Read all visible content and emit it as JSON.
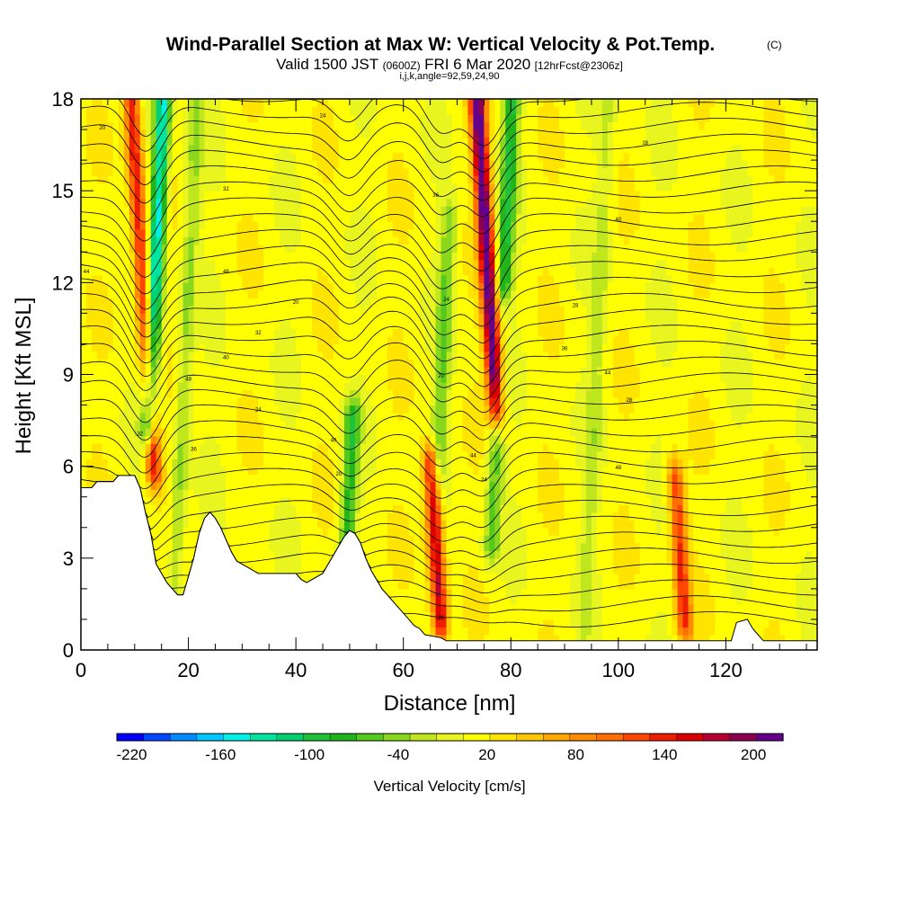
{
  "header": {
    "title_main": "Wind-Parallel Section at Max W: Vertical Velocity & Pot.Temp.",
    "title_units": "(C)",
    "valid_1": "Valid 1500 JST",
    "valid_2": "(0600Z)",
    "valid_3": "FRI 6 Mar 2020",
    "valid_4": "[12hrFcst@2306z]",
    "ijk": "i,j,k,angle=92,59,24,90"
  },
  "chart_data": {
    "type": "heatmap",
    "title": "Wind-Parallel Section at Max W: Vertical Velocity & Pot.Temp.",
    "xlabel": "Distance [nm]",
    "ylabel": "Height [Kft MSL]",
    "xlim": [
      0,
      137
    ],
    "ylim": [
      0,
      18
    ],
    "x_ticks": [
      "0",
      "20",
      "40",
      "60",
      "80",
      "100",
      "120"
    ],
    "x_tick_values": [
      0,
      20,
      40,
      60,
      80,
      100,
      120
    ],
    "y_ticks": [
      "0",
      "3",
      "6",
      "9",
      "12",
      "15",
      "18"
    ],
    "y_tick_values": [
      0,
      3,
      6,
      9,
      12,
      15,
      18
    ],
    "colorbar": {
      "label": "Vertical Velocity [cm/s]",
      "tick_labels": [
        "-220",
        "-160",
        "-100",
        "-40",
        "20",
        "80",
        "140",
        "200"
      ],
      "tick_values": [
        -220,
        -160,
        -100,
        -40,
        20,
        80,
        140,
        200
      ],
      "range": [
        -230,
        220
      ],
      "colors": [
        "#0000ff",
        "#0047ff",
        "#008cff",
        "#00c8ff",
        "#00f0e6",
        "#00e6a0",
        "#00d070",
        "#1fc33a",
        "#22b41c",
        "#55c81e",
        "#8ad71e",
        "#c0e61e",
        "#e8f51e",
        "#ffff00",
        "#ffe400",
        "#ffc800",
        "#ffa800",
        "#ff8c00",
        "#ff6e00",
        "#ff4600",
        "#f01e00",
        "#dc0000",
        "#b90032",
        "#8b0050",
        "#64008c"
      ]
    },
    "velocity_features": [
      {
        "x": 11.5,
        "z_bottom": 6.0,
        "z_top": 18,
        "w": 140
      },
      {
        "x": 14.0,
        "z_bottom": 7.5,
        "z_top": 18,
        "w": -160
      },
      {
        "x": 19.5,
        "z_bottom": 2.0,
        "z_top": 18,
        "w": -50
      },
      {
        "x": 50.0,
        "z_bottom": 3.5,
        "z_top": 7.5,
        "w": -90
      },
      {
        "x": 66.0,
        "z_bottom": 1.0,
        "z_top": 6.0,
        "w": 160
      },
      {
        "x": 67.5,
        "z_bottom": 6.0,
        "z_top": 14,
        "w": -60
      },
      {
        "x": 75.5,
        "z_bottom": 8.0,
        "z_top": 18,
        "w": 210
      },
      {
        "x": 77.0,
        "z_bottom": 3.5,
        "z_top": 8.0,
        "w": -70
      },
      {
        "x": 79.5,
        "z_bottom": 12,
        "z_top": 18,
        "w": -100
      },
      {
        "x": 96.0,
        "z_bottom": 1.0,
        "z_top": 18,
        "w": -30
      },
      {
        "x": 111.5,
        "z_bottom": 1.0,
        "z_top": 5.5,
        "w": 120
      }
    ],
    "theta_contour_labels": [
      "20",
      "24",
      "28",
      "32",
      "36",
      "40",
      "44",
      "48"
    ],
    "terrain_kft": [
      [
        0,
        5.3
      ],
      [
        2,
        5.3
      ],
      [
        3,
        5.5
      ],
      [
        6,
        5.5
      ],
      [
        7,
        5.7
      ],
      [
        10,
        5.7
      ],
      [
        11,
        5.3
      ],
      [
        12,
        4.5
      ],
      [
        13,
        3.8
      ],
      [
        14,
        2.8
      ],
      [
        15,
        2.5
      ],
      [
        16,
        2.2
      ],
      [
        17,
        2.0
      ],
      [
        18,
        1.8
      ],
      [
        19,
        1.8
      ],
      [
        20,
        2.4
      ],
      [
        21,
        3.0
      ],
      [
        22,
        3.8
      ],
      [
        23,
        4.3
      ],
      [
        24,
        4.5
      ],
      [
        25,
        4.3
      ],
      [
        26,
        4.0
      ],
      [
        27,
        3.6
      ],
      [
        28,
        3.2
      ],
      [
        29,
        2.9
      ],
      [
        30,
        2.8
      ],
      [
        31,
        2.7
      ],
      [
        32,
        2.6
      ],
      [
        33,
        2.5
      ],
      [
        36,
        2.5
      ],
      [
        40,
        2.5
      ],
      [
        41,
        2.3
      ],
      [
        42,
        2.2
      ],
      [
        43,
        2.3
      ],
      [
        45,
        2.5
      ],
      [
        46,
        2.8
      ],
      [
        47,
        3.1
      ],
      [
        48,
        3.4
      ],
      [
        49,
        3.7
      ],
      [
        50,
        3.9
      ],
      [
        51,
        3.8
      ],
      [
        52,
        3.5
      ],
      [
        53,
        3.0
      ],
      [
        54,
        2.6
      ],
      [
        55,
        2.3
      ],
      [
        56,
        2.0
      ],
      [
        57,
        1.8
      ],
      [
        58,
        1.6
      ],
      [
        59,
        1.4
      ],
      [
        60,
        1.2
      ],
      [
        61,
        1.0
      ],
      [
        62,
        0.8
      ],
      [
        63,
        0.7
      ],
      [
        64,
        0.5
      ],
      [
        67,
        0.4
      ],
      [
        68,
        0.3
      ],
      [
        70,
        0.3
      ],
      [
        72,
        0.3
      ],
      [
        75,
        0.3
      ],
      [
        80,
        0.3
      ],
      [
        100,
        0.3
      ],
      [
        110,
        0.3
      ],
      [
        121,
        0.3
      ],
      [
        122,
        0.9
      ],
      [
        124,
        1.0
      ],
      [
        125,
        0.7
      ],
      [
        126,
        0.5
      ],
      [
        127,
        0.3
      ],
      [
        130,
        0.3
      ],
      [
        134,
        0.3
      ],
      [
        137,
        0.3
      ]
    ]
  }
}
